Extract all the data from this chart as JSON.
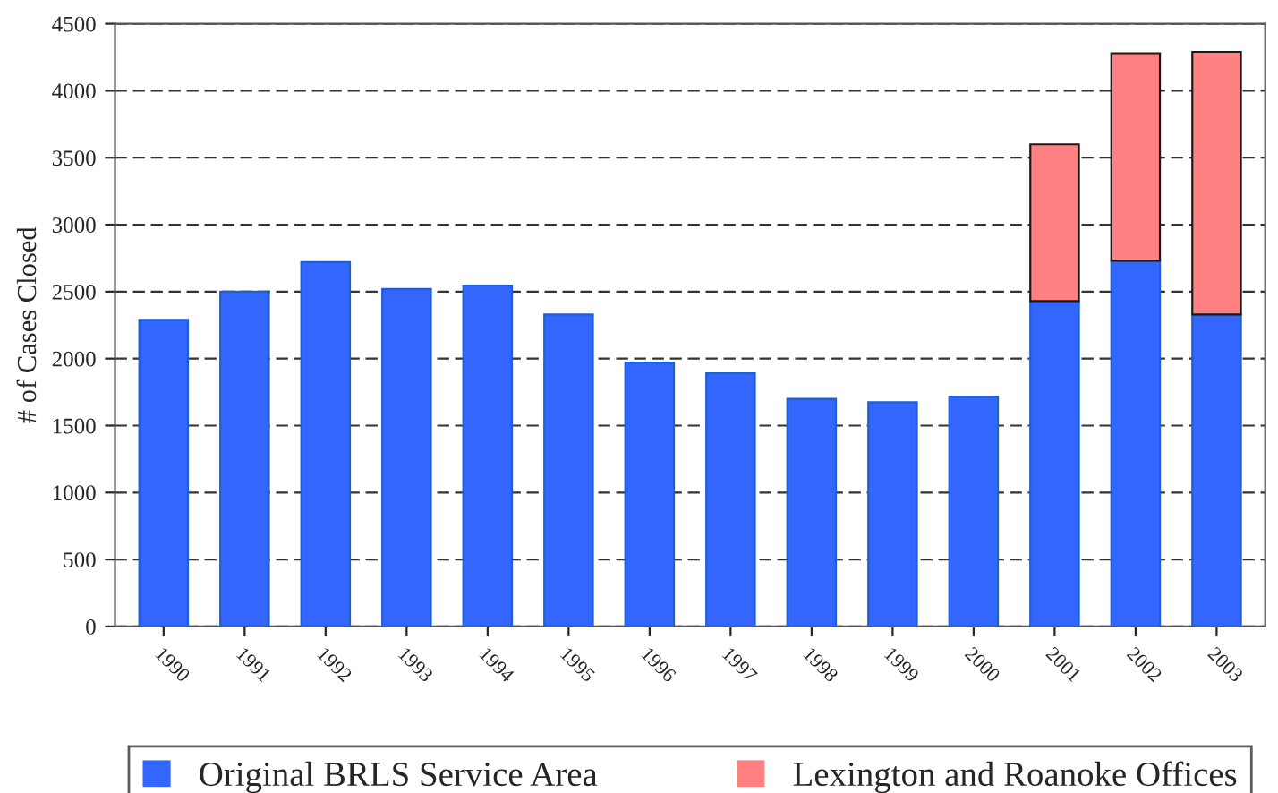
{
  "chart_data": {
    "type": "bar",
    "stacked": true,
    "ylabel": "# of Cases Closed",
    "categories": [
      "1990",
      "1991",
      "1992",
      "1993",
      "1994",
      "1995",
      "1996",
      "1997",
      "1998",
      "1999",
      "2000",
      "2001",
      "2002",
      "2003"
    ],
    "series": [
      {
        "name": "Original BRLS Service Area",
        "color": "#3366ff",
        "values": [
          2290,
          2500,
          2720,
          2520,
          2545,
          2330,
          1970,
          1890,
          1700,
          1675,
          1715,
          2430,
          2730,
          2330
        ]
      },
      {
        "name": "Lexington and Roanoke Offices",
        "color": "#ff8080",
        "values": [
          null,
          null,
          null,
          null,
          null,
          null,
          null,
          null,
          null,
          null,
          null,
          1170,
          1550,
          1960
        ]
      }
    ],
    "ylim": [
      0,
      4500
    ],
    "yticks": [
      0,
      500,
      1000,
      1500,
      2000,
      2500,
      3000,
      3500,
      4000,
      4500
    ],
    "grid": "y",
    "legend": "bottom"
  }
}
